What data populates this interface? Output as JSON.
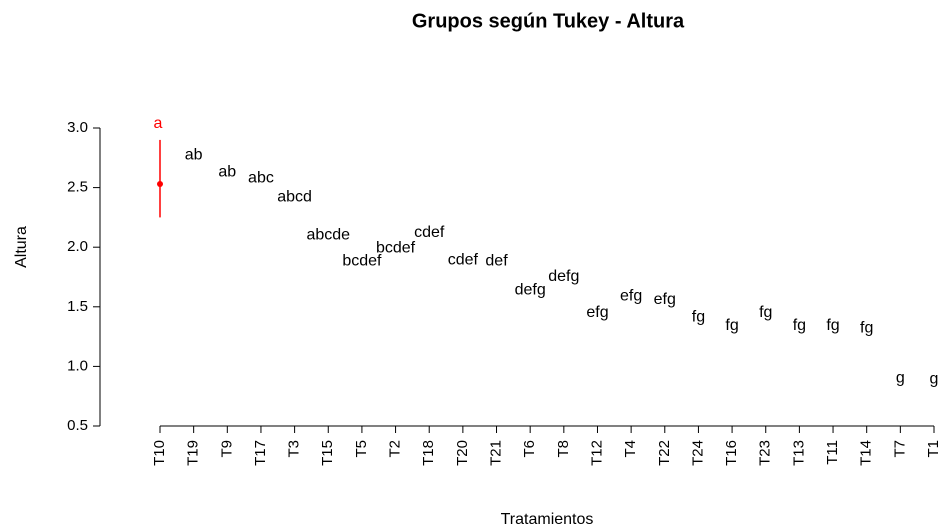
{
  "chart_data": {
    "type": "group-scatter",
    "title": "Grupos según Tukey - Altura",
    "x_label": "Tratamientos",
    "y_label": "Altura",
    "categories": [
      "T10",
      "T19",
      "T9",
      "T17",
      "T3",
      "T15",
      "T5",
      "T2",
      "T18",
      "T20",
      "T21",
      "T6",
      "T8",
      "T12",
      "T4",
      "T22",
      "T24",
      "T16",
      "T23",
      "T13",
      "T11",
      "T14",
      "T7",
      "T1"
    ],
    "values": [
      2.53,
      2.77,
      2.63,
      2.58,
      2.42,
      2.1,
      1.88,
      1.99,
      2.12,
      1.89,
      1.88,
      1.64,
      1.75,
      1.45,
      1.59,
      1.56,
      1.41,
      1.34,
      1.45,
      1.34,
      1.34,
      1.32,
      0.9,
      0.89
    ],
    "value_labels": [
      "a",
      "ab",
      "ab",
      "abc",
      "abcd",
      "abcde",
      "bcdef",
      "bcdef",
      "cdef",
      "cdef",
      "def",
      "defg",
      "defg",
      "efg",
      "efg",
      "efg",
      "fg",
      "fg",
      "fg",
      "fg",
      "fg",
      "fg",
      "g",
      "g"
    ],
    "lower": [
      2.25,
      null,
      null,
      null,
      null,
      null,
      null,
      null,
      null,
      null,
      null,
      null,
      null,
      null,
      null,
      null,
      null,
      null,
      null,
      null,
      null,
      null,
      null,
      null
    ],
    "upper": [
      2.9,
      null,
      null,
      null,
      null,
      null,
      null,
      null,
      null,
      null,
      null,
      null,
      null,
      null,
      null,
      null,
      null,
      null,
      null,
      null,
      null,
      null,
      null,
      null
    ],
    "highlight_color": "#ff0000",
    "color": "#000000",
    "ylim": [
      0.5,
      3.0
    ],
    "yticks": [
      {
        "value": 0.5,
        "label": "0.5"
      },
      {
        "value": 1.0,
        "label": "1.0"
      },
      {
        "value": 1.5,
        "label": "1.5"
      },
      {
        "value": 2.0,
        "label": "2.0"
      },
      {
        "value": 2.5,
        "label": "2.5"
      },
      {
        "value": 3.0,
        "label": "3.0"
      }
    ]
  }
}
